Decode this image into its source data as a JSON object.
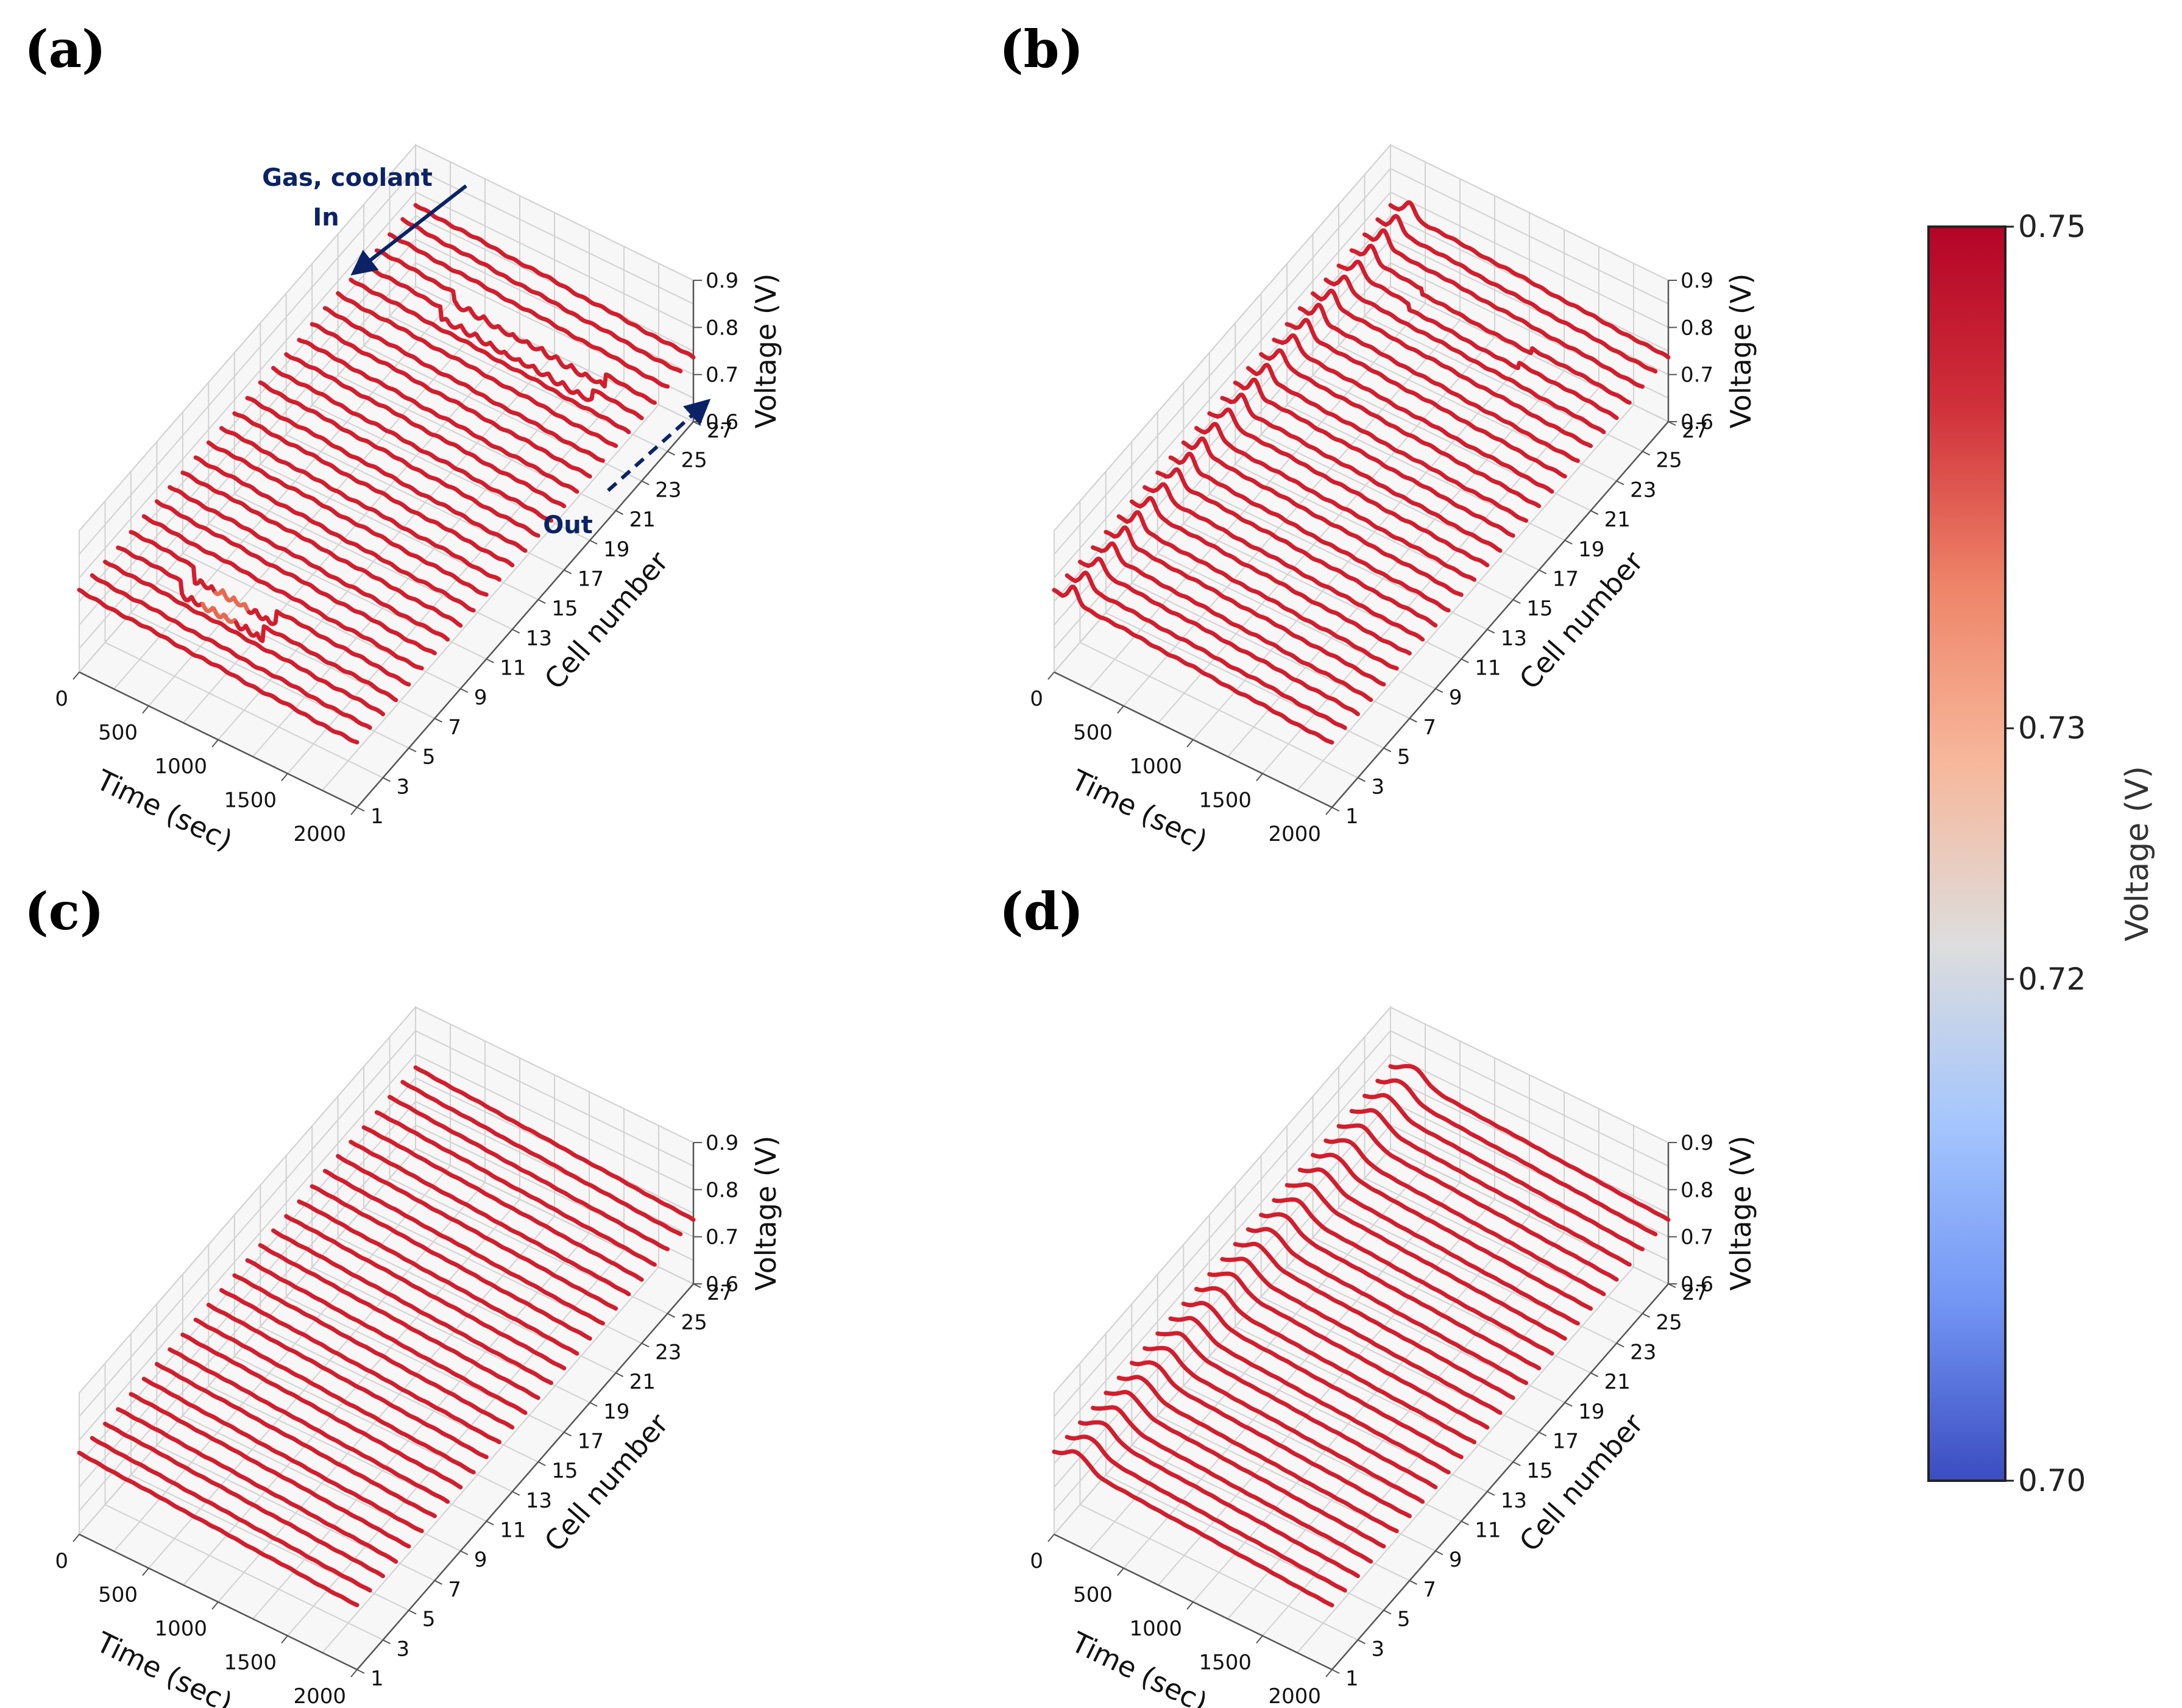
{
  "colorbar": {
    "title": "Voltage (V)",
    "ticks": [
      "0.75",
      "0.73",
      "0.72",
      "0.70"
    ],
    "range": [
      0.7,
      0.75
    ],
    "colors": [
      "#3b4cc0",
      "#7396f5",
      "#a5c6fd",
      "#dddddd",
      "#f7b89c",
      "#ee8468",
      "#d0303a",
      "#b40426"
    ]
  },
  "chart_data": [
    {
      "type": "line3d",
      "panel": "(a)",
      "xlabel": "Time (sec)",
      "ylabel": "Cell number",
      "zlabel": "Voltage (V)",
      "xticks": [
        "0",
        "500",
        "1000",
        "1500",
        "2000"
      ],
      "yticks": [
        "1",
        "3",
        "5",
        "7",
        "9",
        "11",
        "13",
        "15",
        "17",
        "19",
        "21",
        "23",
        "25",
        "27"
      ],
      "zticks": [
        "0.6",
        "0.7",
        "0.8",
        "0.9"
      ],
      "xlim": [
        0,
        2000
      ],
      "ylim": [
        1,
        27
      ],
      "zlim": [
        0.6,
        0.9
      ],
      "cells": 27,
      "series_profile": "Most cells hold ~0.76-0.77 V with a slow decline; cells 4-5 (~500-1000 s) and 23-24 (~600-1600 s) show voltage fluctuations",
      "annotations": [
        {
          "text_lines": [
            "Gas, coolant",
            "In"
          ],
          "arrow": "solid"
        },
        {
          "text_lines": [
            "Out"
          ],
          "arrow": "dashed"
        }
      ]
    },
    {
      "type": "line3d",
      "panel": "(b)",
      "xlabel": "Time (sec)",
      "ylabel": "Cell number",
      "zlabel": "Voltage (V)",
      "xticks": [
        "0",
        "500",
        "1000",
        "1500",
        "2000"
      ],
      "yticks": [
        "1",
        "3",
        "5",
        "7",
        "9",
        "11",
        "13",
        "15",
        "17",
        "19",
        "21",
        "23",
        "25",
        "27"
      ],
      "zticks": [
        "0.6",
        "0.7",
        "0.8",
        "0.9"
      ],
      "xlim": [
        0,
        2000
      ],
      "ylim": [
        1,
        27
      ],
      "zlim": [
        0.6,
        0.9
      ],
      "cells": 27,
      "series_profile": "Early voltage spike near ~150 s on each cell, then ~0.76 V with slow decline; mild dip on cells 23-24",
      "annotations": []
    },
    {
      "type": "line3d",
      "panel": "(c)",
      "xlabel": "Time (sec)",
      "ylabel": "Cell number",
      "zlabel": "Voltage (V)",
      "xticks": [
        "0",
        "500",
        "1000",
        "1500",
        "2000"
      ],
      "yticks": [
        "1",
        "3",
        "5",
        "7",
        "9",
        "11",
        "13",
        "15",
        "17",
        "19",
        "21",
        "23",
        "25",
        "27"
      ],
      "zticks": [
        "0.6",
        "0.7",
        "0.8",
        "0.9"
      ],
      "xlim": [
        0,
        2000
      ],
      "ylim": [
        1,
        27
      ],
      "zlim": [
        0.6,
        0.9
      ],
      "cells": 27,
      "series_profile": "Smooth, uniform ~0.77 V with gentle decline on all cells",
      "annotations": []
    },
    {
      "type": "line3d",
      "panel": "(d)",
      "xlabel": "Time (sec)",
      "ylabel": "Cell number",
      "zlabel": "Voltage (V)",
      "xticks": [
        "0",
        "500",
        "1000",
        "1500",
        "2000"
      ],
      "yticks": [
        "1",
        "3",
        "5",
        "7",
        "9",
        "11",
        "13",
        "15",
        "17",
        "19",
        "21",
        "23",
        "25",
        "27"
      ],
      "zticks": [
        "0.6",
        "0.7",
        "0.8",
        "0.9"
      ],
      "xlim": [
        0,
        2000
      ],
      "ylim": [
        1,
        27
      ],
      "zlim": [
        0.6,
        0.9
      ],
      "cells": 27,
      "series_profile": "Initial peak ~0.79 V near 100-200 s then decline to ~0.76 V on all cells",
      "annotations": []
    }
  ]
}
